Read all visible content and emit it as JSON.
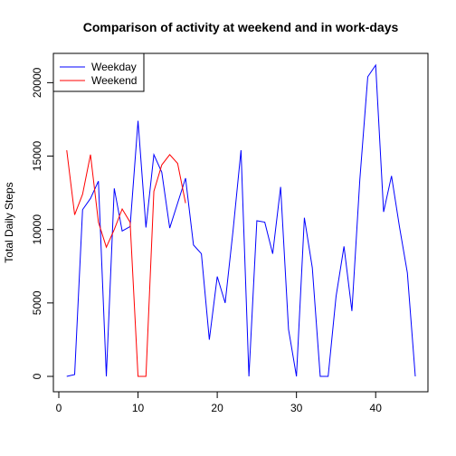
{
  "chart_data": {
    "type": "line",
    "title": "Comparison of activity at weekend and in work-days",
    "xlabel": "",
    "ylabel": "Total Daily Steps",
    "xlim": [
      0,
      45
    ],
    "ylim": [
      0,
      21194
    ],
    "x_ticks": [
      0,
      10,
      20,
      30,
      40
    ],
    "y_ticks": [
      0,
      5000,
      10000,
      15000,
      20000
    ],
    "grid": false,
    "legend_position": "top-left",
    "series": [
      {
        "name": "Weekday",
        "color": "#0000ff",
        "x": [
          1,
          2,
          3,
          4,
          5,
          6,
          7,
          8,
          9,
          10,
          11,
          12,
          13,
          14,
          15,
          16,
          17,
          18,
          19,
          20,
          21,
          22,
          23,
          24,
          25,
          26,
          27,
          28,
          29,
          30,
          31,
          32,
          33,
          34,
          35,
          36,
          37,
          38,
          39,
          40,
          41,
          42,
          43,
          44,
          45
        ],
        "values": [
          0,
          126,
          11352,
          12116,
          13294,
          0,
          12800,
          9900,
          10200,
          17400,
          10140,
          15100,
          13900,
          10100,
          11800,
          13500,
          8950,
          8350,
          2500,
          6800,
          5000,
          9950,
          15400,
          0,
          10600,
          10500,
          8350,
          12900,
          3200,
          0,
          10800,
          7400,
          0,
          0,
          5450,
          8850,
          4450,
          13400,
          20400,
          21194,
          11200,
          13650,
          10200,
          7050,
          0
        ]
      },
      {
        "name": "Weekend",
        "color": "#ff0000",
        "x": [
          1,
          2,
          3,
          4,
          5,
          6,
          7,
          8,
          9,
          10,
          11,
          12,
          13,
          14,
          15,
          16
        ],
        "values": [
          15400,
          11000,
          12400,
          15100,
          10500,
          8800,
          10000,
          11400,
          10500,
          0,
          0,
          12600,
          14400,
          15100,
          14500,
          11800
        ]
      }
    ]
  }
}
